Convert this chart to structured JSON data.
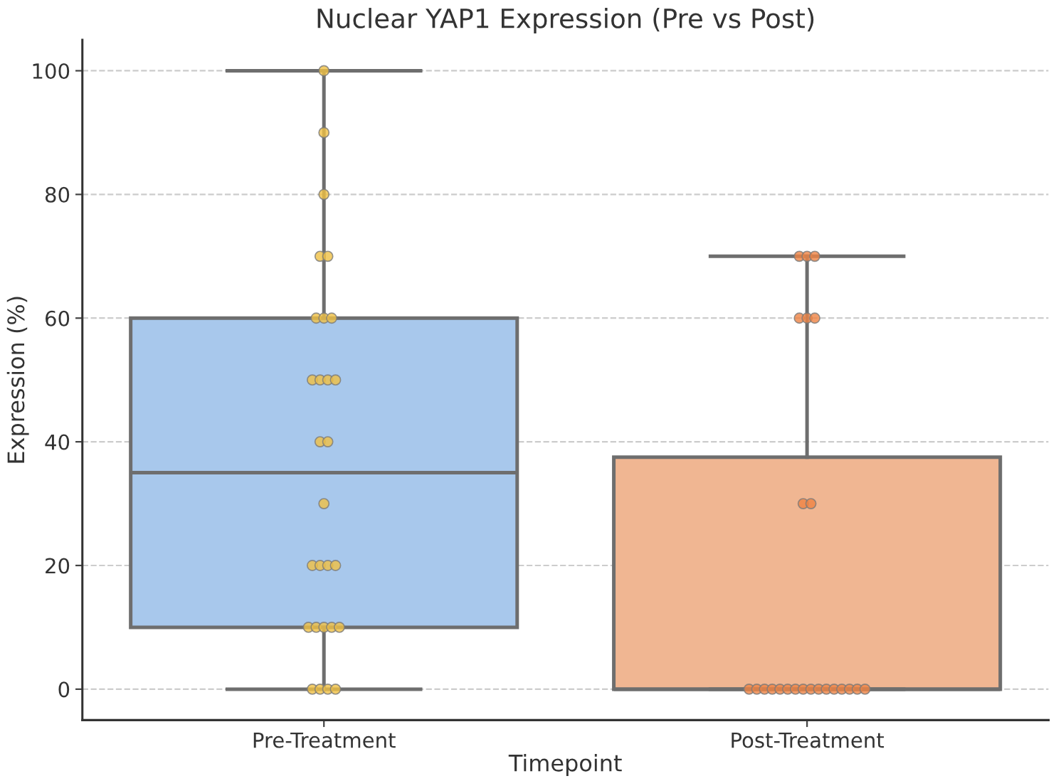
{
  "chart_data": {
    "type": "box",
    "title": "Nuclear YAP1 Expression (Pre vs Post)",
    "xlabel": "Timepoint",
    "ylabel": "Expression (%)",
    "categories": [
      "Pre-Treatment",
      "Post-Treatment"
    ],
    "colors": [
      "#a8c8ec",
      "#f0b692"
    ],
    "boxes": [
      {
        "low": 0,
        "q1": 10,
        "median": 35,
        "q3": 60,
        "high": 100
      },
      {
        "low": 0,
        "q1": 0,
        "median": 0,
        "q3": 37.5,
        "high": 70
      }
    ],
    "series": [
      {
        "type": "scatter",
        "color": "#f0c043",
        "x": [
          "Pre-Treatment",
          "Pre-Treatment",
          "Pre-Treatment",
          "Pre-Treatment",
          "Pre-Treatment",
          "Pre-Treatment",
          "Pre-Treatment",
          "Pre-Treatment",
          "Pre-Treatment",
          "Pre-Treatment",
          "Pre-Treatment",
          "Pre-Treatment",
          "Pre-Treatment",
          "Pre-Treatment",
          "Pre-Treatment",
          "Pre-Treatment",
          "Pre-Treatment",
          "Pre-Treatment",
          "Pre-Treatment",
          "Pre-Treatment",
          "Pre-Treatment",
          "Pre-Treatment",
          "Pre-Treatment",
          "Pre-Treatment",
          "Pre-Treatment",
          "Pre-Treatment",
          "Pre-Treatment",
          "Pre-Treatment"
        ],
        "values": [
          100,
          90,
          80,
          70,
          70,
          60,
          60,
          60,
          50,
          50,
          50,
          50,
          40,
          40,
          30,
          20,
          20,
          20,
          20,
          10,
          10,
          10,
          10,
          10,
          0,
          0,
          0,
          0
        ]
      },
      {
        "type": "scatter",
        "color": "#ef8344",
        "x": [
          "Post-Treatment",
          "Post-Treatment",
          "Post-Treatment",
          "Post-Treatment",
          "Post-Treatment",
          "Post-Treatment",
          "Post-Treatment",
          "Post-Treatment",
          "Post-Treatment",
          "Post-Treatment",
          "Post-Treatment",
          "Post-Treatment",
          "Post-Treatment",
          "Post-Treatment",
          "Post-Treatment",
          "Post-Treatment",
          "Post-Treatment",
          "Post-Treatment",
          "Post-Treatment",
          "Post-Treatment",
          "Post-Treatment",
          "Post-Treatment",
          "Post-Treatment",
          "Post-Treatment"
        ],
        "values": [
          70,
          70,
          70,
          60,
          60,
          60,
          30,
          30,
          0,
          0,
          0,
          0,
          0,
          0,
          0,
          0,
          0,
          0,
          0,
          0,
          0,
          0,
          0,
          0
        ]
      }
    ],
    "ylim": [
      -5,
      105
    ],
    "yticks": [
      0,
      20,
      40,
      60,
      80,
      100
    ],
    "grid": "y",
    "marker": "circle"
  }
}
